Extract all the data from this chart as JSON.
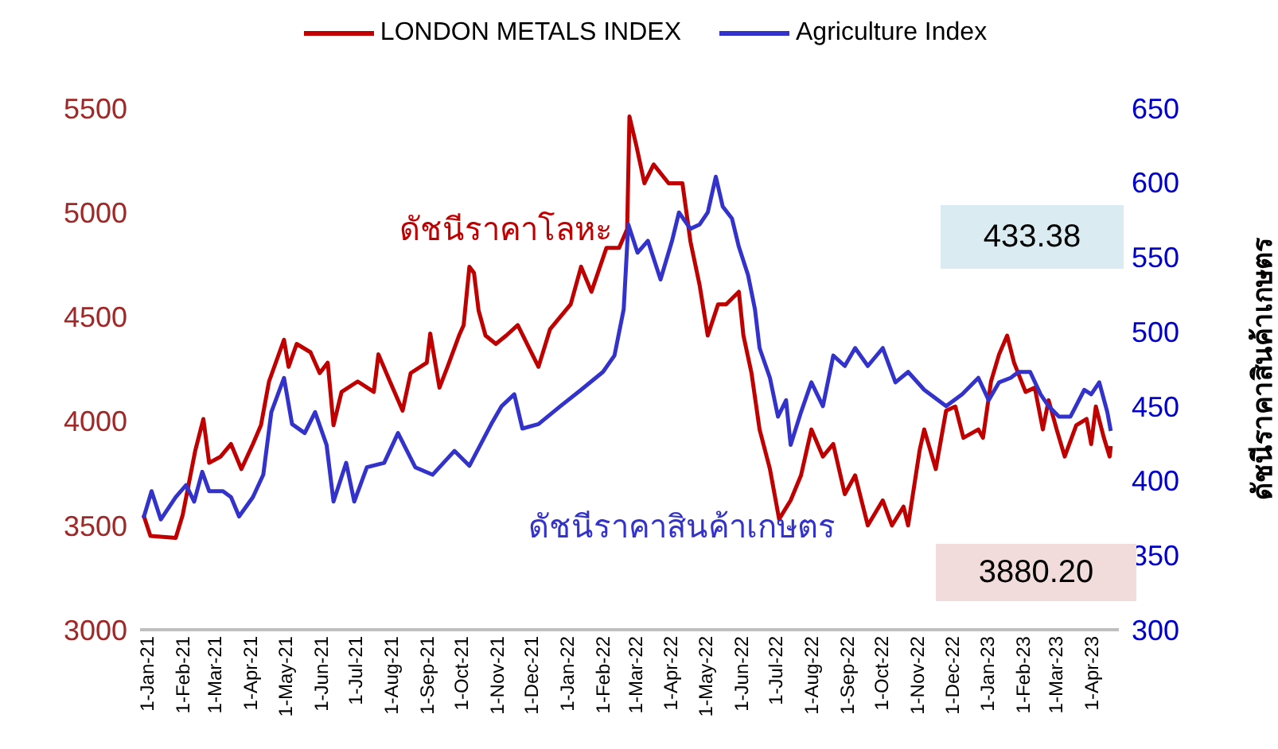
{
  "chart_data": {
    "type": "line",
    "y2label": "ดัชนีราคาสินค้าเกษตร",
    "legend": "top",
    "grid": false,
    "marker": "none",
    "line_style": "solid",
    "xlim": [
      "2021-01-01",
      "2023-05-01"
    ],
    "xticks": [
      {
        "value": "2021-01-01",
        "label": "1-Jan-21"
      },
      {
        "value": "2021-02-01",
        "label": "1-Feb-21"
      },
      {
        "value": "2021-03-01",
        "label": "1-Mar-21"
      },
      {
        "value": "2021-04-01",
        "label": "1-Apr-21"
      },
      {
        "value": "2021-05-01",
        "label": "1-May-21"
      },
      {
        "value": "2021-06-01",
        "label": "1-Jun-21"
      },
      {
        "value": "2021-07-01",
        "label": "1-Jul-21"
      },
      {
        "value": "2021-08-01",
        "label": "1-Aug-21"
      },
      {
        "value": "2021-09-01",
        "label": "1-Sep-21"
      },
      {
        "value": "2021-10-01",
        "label": "1-Oct-21"
      },
      {
        "value": "2021-11-01",
        "label": "1-Nov-21"
      },
      {
        "value": "2021-12-01",
        "label": "1-Dec-21"
      },
      {
        "value": "2022-01-01",
        "label": "1-Jan-22"
      },
      {
        "value": "2022-02-01",
        "label": "1-Feb-22"
      },
      {
        "value": "2022-03-01",
        "label": "1-Mar-22"
      },
      {
        "value": "2022-04-01",
        "label": "1-Apr-22"
      },
      {
        "value": "2022-05-01",
        "label": "1-May-22"
      },
      {
        "value": "2022-06-01",
        "label": "1-Jun-22"
      },
      {
        "value": "2022-07-01",
        "label": "1-Jul-22"
      },
      {
        "value": "2022-08-01",
        "label": "1-Aug-22"
      },
      {
        "value": "2022-09-01",
        "label": "1-Sep-22"
      },
      {
        "value": "2022-10-01",
        "label": "1-Oct-22"
      },
      {
        "value": "2022-11-01",
        "label": "1-Nov-22"
      },
      {
        "value": "2022-12-01",
        "label": "1-Dec-22"
      },
      {
        "value": "2023-01-01",
        "label": "1-Jan-23"
      },
      {
        "value": "2023-02-01",
        "label": "1-Feb-23"
      },
      {
        "value": "2023-03-01",
        "label": "1-Mar-23"
      },
      {
        "value": "2023-04-01",
        "label": "1-Apr-23"
      }
    ],
    "ylim": [
      3000,
      5500
    ],
    "yticks": [
      3000,
      3500,
      4000,
      4500,
      5000,
      5500
    ],
    "y2lim": [
      300,
      650
    ],
    "y2ticks": [
      300,
      350,
      400,
      450,
      500,
      550,
      600,
      650
    ],
    "annotations": [
      "ดัชนีราคาโลหะ",
      "ดัชนีราคาสินค้าเกษตร",
      "433.38",
      "3880.20"
    ],
    "series": [
      {
        "name": "LONDON METALS INDEX",
        "color": "#c00000",
        "x": [
          "2021-01-04",
          "2021-01-10",
          "2021-02-01",
          "2021-02-07",
          "2021-02-18",
          "2021-02-25",
          "2021-03-02",
          "2021-03-12",
          "2021-03-21",
          "2021-03-30",
          "2021-04-09",
          "2021-04-16",
          "2021-04-23",
          "2021-05-06",
          "2021-05-10",
          "2021-05-17",
          "2021-05-29",
          "2021-06-06",
          "2021-06-13",
          "2021-06-18",
          "2021-06-25",
          "2021-07-09",
          "2021-07-23",
          "2021-07-27",
          "2021-08-06",
          "2021-08-17",
          "2021-08-24",
          "2021-09-07",
          "2021-09-10",
          "2021-09-18",
          "2021-09-25",
          "2021-10-05",
          "2021-10-09",
          "2021-10-14",
          "2021-10-18",
          "2021-10-22",
          "2021-10-28",
          "2021-11-06",
          "2021-11-15",
          "2021-11-25",
          "2021-12-13",
          "2021-12-23",
          "2022-01-10",
          "2022-01-19",
          "2022-01-28",
          "2022-02-10",
          "2022-02-21",
          "2022-02-28",
          "2022-03-02",
          "2022-03-08",
          "2022-03-15",
          "2022-03-23",
          "2022-04-05",
          "2022-04-17",
          "2022-04-24",
          "2022-05-02",
          "2022-05-09",
          "2022-05-18",
          "2022-05-25",
          "2022-06-05",
          "2022-06-09",
          "2022-06-16",
          "2022-06-23",
          "2022-07-02",
          "2022-07-10",
          "2022-07-20",
          "2022-07-29",
          "2022-08-07",
          "2022-08-17",
          "2022-08-26",
          "2022-09-05",
          "2022-09-14",
          "2022-09-25",
          "2022-10-08",
          "2022-10-16",
          "2022-10-26",
          "2022-10-30",
          "2022-11-09",
          "2022-11-13",
          "2022-11-23",
          "2022-12-02",
          "2022-12-10",
          "2022-12-17",
          "2022-12-30",
          "2023-01-03",
          "2023-01-10",
          "2023-01-17",
          "2023-01-24",
          "2023-01-30",
          "2023-02-09",
          "2023-02-17",
          "2023-02-24",
          "2023-03-01",
          "2023-03-08",
          "2023-03-15",
          "2023-03-25",
          "2023-04-03",
          "2023-04-07",
          "2023-04-11",
          "2023-04-18",
          "2023-04-23",
          "2023-04-24"
        ],
        "values": [
          3550,
          3450,
          3440,
          3550,
          3860,
          4010,
          3800,
          3830,
          3890,
          3770,
          3890,
          3980,
          4190,
          4390,
          4260,
          4370,
          4330,
          4230,
          4280,
          3980,
          4140,
          4190,
          4140,
          4320,
          4190,
          4050,
          4230,
          4280,
          4420,
          4160,
          4260,
          4410,
          4460,
          4740,
          4710,
          4530,
          4410,
          4370,
          4410,
          4460,
          4260,
          4440,
          4560,
          4740,
          4620,
          4830,
          4830,
          4920,
          5460,
          5320,
          5140,
          5230,
          5140,
          5140,
          4860,
          4650,
          4410,
          4560,
          4560,
          4620,
          4410,
          4230,
          3960,
          3770,
          3530,
          3620,
          3740,
          3960,
          3830,
          3890,
          3650,
          3740,
          3500,
          3620,
          3500,
          3590,
          3500,
          3860,
          3960,
          3770,
          4050,
          4070,
          3920,
          3960,
          3920,
          4190,
          4320,
          4410,
          4280,
          4140,
          4160,
          3960,
          4100,
          3960,
          3830,
          3980,
          4010,
          3890,
          4070,
          3920,
          3830,
          3880.2
        ]
      },
      {
        "name": "Agriculture Index",
        "color": "#3333cc",
        "axis": "y2",
        "x": [
          "2021-01-04",
          "2021-01-11",
          "2021-01-19",
          "2021-02-01",
          "2021-02-10",
          "2021-02-17",
          "2021-02-24",
          "2021-03-02",
          "2021-03-14",
          "2021-03-21",
          "2021-03-28",
          "2021-04-09",
          "2021-04-18",
          "2021-04-25",
          "2021-05-06",
          "2021-05-13",
          "2021-05-24",
          "2021-06-02",
          "2021-06-12",
          "2021-06-18",
          "2021-06-29",
          "2021-07-06",
          "2021-07-17",
          "2021-08-01",
          "2021-08-13",
          "2021-08-28",
          "2021-09-12",
          "2021-10-01",
          "2021-10-14",
          "2021-11-02",
          "2021-11-11",
          "2021-11-22",
          "2021-11-29",
          "2021-12-13",
          "2022-01-01",
          "2022-01-19",
          "2022-02-07",
          "2022-02-17",
          "2022-02-25",
          "2022-03-01",
          "2022-03-09",
          "2022-03-18",
          "2022-03-29",
          "2022-04-08",
          "2022-04-14",
          "2022-04-24",
          "2022-05-02",
          "2022-05-09",
          "2022-05-16",
          "2022-05-22",
          "2022-05-30",
          "2022-06-05",
          "2022-06-13",
          "2022-06-19",
          "2022-06-23",
          "2022-07-02",
          "2022-07-09",
          "2022-07-16",
          "2022-07-20",
          "2022-07-29",
          "2022-08-07",
          "2022-08-17",
          "2022-08-26",
          "2022-09-05",
          "2022-09-14",
          "2022-09-25",
          "2022-10-08",
          "2022-10-19",
          "2022-10-30",
          "2022-11-13",
          "2022-12-02",
          "2022-12-16",
          "2022-12-30",
          "2023-01-08",
          "2023-01-17",
          "2023-01-27",
          "2023-02-03",
          "2023-02-13",
          "2023-02-22",
          "2023-03-01",
          "2023-03-10",
          "2023-03-20",
          "2023-04-01",
          "2023-04-07",
          "2023-04-14",
          "2023-04-21",
          "2023-04-24"
        ],
        "values": [
          375,
          393,
          374,
          389,
          397,
          386,
          406,
          393,
          393,
          389,
          376,
          389,
          404,
          446,
          469,
          438,
          432,
          446,
          424,
          386,
          412,
          386,
          409,
          412,
          432,
          409,
          404,
          420,
          410,
          438,
          450,
          458,
          435,
          438,
          450,
          461,
          473,
          484,
          515,
          572,
          553,
          561,
          535,
          561,
          580,
          569,
          572,
          580,
          604,
          584,
          576,
          557,
          538,
          515,
          489,
          469,
          443,
          454,
          424,
          446,
          466,
          450,
          484,
          477,
          489,
          477,
          489,
          466,
          473,
          461,
          450,
          458,
          469,
          454,
          466,
          469,
          473,
          473,
          458,
          450,
          443,
          443,
          461,
          458,
          466,
          446,
          433.38
        ]
      }
    ]
  }
}
